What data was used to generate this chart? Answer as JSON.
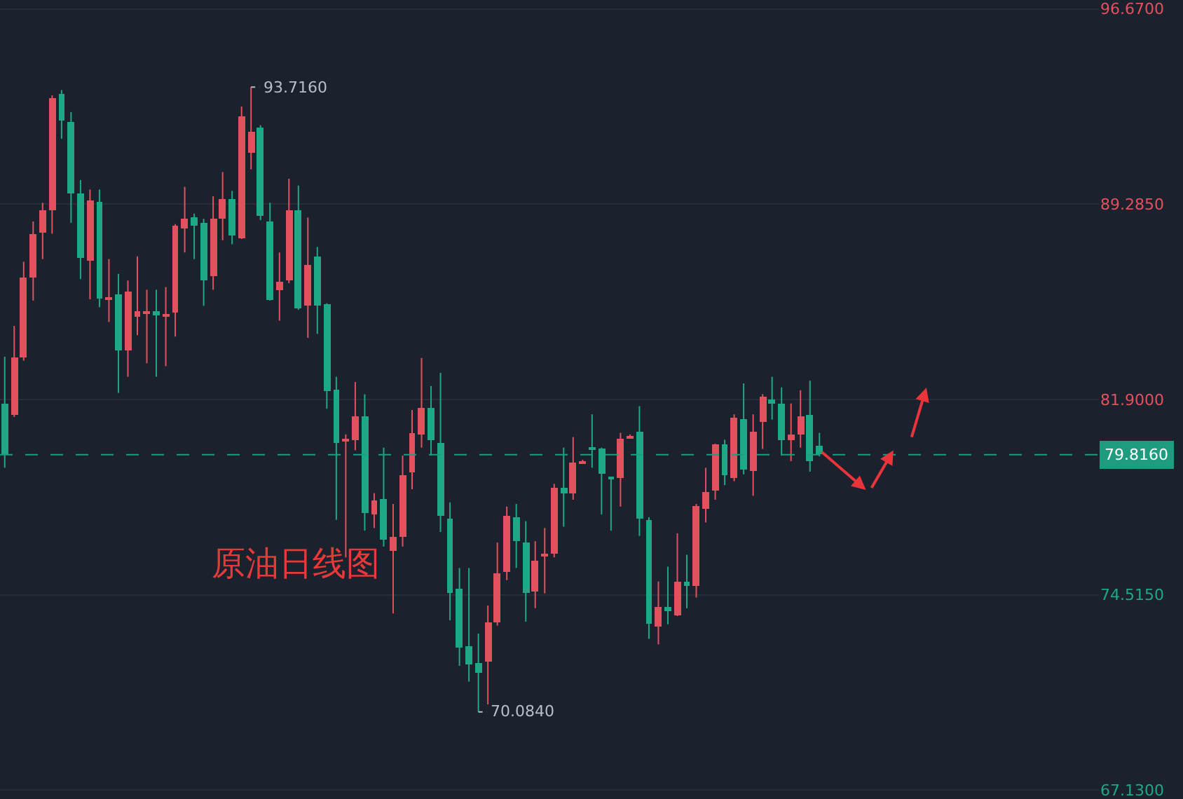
{
  "chart_data": {
    "type": "candlestick",
    "categories": [
      null,
      null,
      null,
      null,
      null,
      null,
      null,
      null,
      null,
      null,
      null,
      null,
      null,
      null,
      null,
      null,
      null,
      null,
      null,
      null,
      null,
      null,
      null,
      null,
      null,
      null,
      null,
      null,
      null,
      null,
      null,
      null,
      null,
      null,
      null,
      null,
      null,
      null,
      null,
      null,
      null,
      null,
      null,
      null,
      null,
      null,
      null,
      null,
      null,
      null,
      null,
      null,
      null,
      null,
      null,
      null,
      null,
      null,
      null,
      null,
      null,
      null,
      null,
      null,
      null,
      null,
      null,
      null,
      null,
      null,
      null,
      null,
      null,
      null,
      null,
      null,
      null,
      null,
      null,
      null,
      null,
      null,
      null,
      null,
      null,
      null,
      null,
      null,
      null,
      null,
      null,
      null,
      null,
      null,
      null,
      null,
      null,
      null,
      null,
      null,
      null,
      null,
      null,
      null,
      null,
      null,
      null,
      null,
      null,
      null,
      null,
      null,
      null,
      null,
      null,
      null
    ],
    "ohlc": [
      [
        81.75,
        83.52,
        79.32,
        79.83
      ],
      [
        81.34,
        84.68,
        81.24,
        83.47
      ],
      [
        83.47,
        87.11,
        83.37,
        86.5
      ],
      [
        86.5,
        88.63,
        85.64,
        88.17
      ],
      [
        88.22,
        89.34,
        87.21,
        89.08
      ],
      [
        89.08,
        93.4,
        88.17,
        93.28
      ],
      [
        93.45,
        93.6,
        91.76,
        92.47
      ],
      [
        92.42,
        92.77,
        88.58,
        89.69
      ],
      [
        89.69,
        90.2,
        86.45,
        87.26
      ],
      [
        87.16,
        89.84,
        85.69,
        89.44
      ],
      [
        89.39,
        89.84,
        85.39,
        85.74
      ],
      [
        85.69,
        87.21,
        84.83,
        85.79
      ],
      [
        85.9,
        86.65,
        82.15,
        83.77
      ],
      [
        83.77,
        86.4,
        82.76,
        86.0
      ],
      [
        85.04,
        87.31,
        84.33,
        85.24
      ],
      [
        85.14,
        86.05,
        83.27,
        85.24
      ],
      [
        85.24,
        86.05,
        82.76,
        85.09
      ],
      [
        85.04,
        86.15,
        83.16,
        85.14
      ],
      [
        85.19,
        88.53,
        84.28,
        88.48
      ],
      [
        88.37,
        89.94,
        87.46,
        88.73
      ],
      [
        88.78,
        88.93,
        87.21,
        88.48
      ],
      [
        88.58,
        88.73,
        85.44,
        86.4
      ],
      [
        86.55,
        89.59,
        86.05,
        88.73
      ],
      [
        88.73,
        90.5,
        87.92,
        89.49
      ],
      [
        89.49,
        89.79,
        87.77,
        88.12
      ],
      [
        88.02,
        92.98,
        87.97,
        92.62
      ],
      [
        91.21,
        93.716,
        90.6,
        92.02
      ],
      [
        92.17,
        92.27,
        88.68,
        88.83
      ],
      [
        88.63,
        89.34,
        85.64,
        85.69
      ],
      [
        86.05,
        87.46,
        84.88,
        86.35
      ],
      [
        86.4,
        90.25,
        86.3,
        89.08
      ],
      [
        89.08,
        89.99,
        85.29,
        85.34
      ],
      [
        85.44,
        88.78,
        84.23,
        87.01
      ],
      [
        87.31,
        87.67,
        84.38,
        85.44
      ],
      [
        85.49,
        85.54,
        81.55,
        82.2
      ],
      [
        82.25,
        82.76,
        77.35,
        80.28
      ],
      [
        80.33,
        80.58,
        75.93,
        80.43
      ],
      [
        80.38,
        82.56,
        79.98,
        81.24
      ],
      [
        81.24,
        82.1,
        76.94,
        77.6
      ],
      [
        77.55,
        78.36,
        77.04,
        78.11
      ],
      [
        78.16,
        80.08,
        76.34,
        76.59
      ],
      [
        76.18,
        77.95,
        73.81,
        76.69
      ],
      [
        76.69,
        79.78,
        76.34,
        79.02
      ],
      [
        79.12,
        81.5,
        78.51,
        80.64
      ],
      [
        80.58,
        83.47,
        80.08,
        81.6
      ],
      [
        81.6,
        82.41,
        79.78,
        80.38
      ],
      [
        80.28,
        82.91,
        76.89,
        77.5
      ],
      [
        77.4,
        78.01,
        73.55,
        74.57
      ],
      [
        74.72,
        75.53,
        71.83,
        72.54
      ],
      [
        72.59,
        75.53,
        71.23,
        71.89
      ],
      [
        71.94,
        73.05,
        70.084,
        71.58
      ],
      [
        71.99,
        74.11,
        70.37,
        73.45
      ],
      [
        73.45,
        76.49,
        73.35,
        75.32
      ],
      [
        75.38,
        77.85,
        75.07,
        77.5
      ],
      [
        77.45,
        77.95,
        75.53,
        76.54
      ],
      [
        76.49,
        77.3,
        73.5,
        74.57
      ],
      [
        74.62,
        76.54,
        74.01,
        75.78
      ],
      [
        75.98,
        77.04,
        74.57,
        76.08
      ],
      [
        76.08,
        78.71,
        75.93,
        78.56
      ],
      [
        78.56,
        80.08,
        77.09,
        78.36
      ],
      [
        78.36,
        80.48,
        78.11,
        79.52
      ],
      [
        79.47,
        79.62,
        79.47,
        79.57
      ],
      [
        80.08,
        81.34,
        79.32,
        79.98
      ],
      [
        80.03,
        80.08,
        77.55,
        79.07
      ],
      [
        78.97,
        78.97,
        76.94,
        78.87
      ],
      [
        78.92,
        80.64,
        77.85,
        80.43
      ],
      [
        80.43,
        80.58,
        80.43,
        80.53
      ],
      [
        80.69,
        81.65,
        76.74,
        77.4
      ],
      [
        77.35,
        77.45,
        72.85,
        73.4
      ],
      [
        73.3,
        75.02,
        72.64,
        74.06
      ],
      [
        74.06,
        75.58,
        73.4,
        73.91
      ],
      [
        73.76,
        76.84,
        73.71,
        75.02
      ],
      [
        75.02,
        76.03,
        74.01,
        74.87
      ],
      [
        74.87,
        77.95,
        74.41,
        77.85
      ],
      [
        77.75,
        79.32,
        77.25,
        78.41
      ],
      [
        78.46,
        80.23,
        78.11,
        80.18
      ],
      [
        80.23,
        80.38,
        78.66,
        79.02
      ],
      [
        78.92,
        81.34,
        78.81,
        81.19
      ],
      [
        81.14,
        82.51,
        79.07,
        79.27
      ],
      [
        79.22,
        81.34,
        78.26,
        80.69
      ],
      [
        81.04,
        82.1,
        80.03,
        82.0
      ],
      [
        81.9,
        82.76,
        81.14,
        81.75
      ],
      [
        81.75,
        82.36,
        79.78,
        80.38
      ],
      [
        80.38,
        81.75,
        79.57,
        80.58
      ],
      [
        80.58,
        82.25,
        80.08,
        81.24
      ],
      [
        81.34,
        82.61,
        79.17,
        79.57
      ],
      [
        80.13,
        80.64,
        79.75,
        79.816
      ],
      null,
      null,
      null,
      null,
      null,
      null,
      null,
      null,
      null,
      null,
      null,
      null,
      null,
      null,
      null,
      null,
      null,
      null,
      null,
      null,
      null,
      null,
      null,
      null,
      null,
      null,
      null,
      null,
      null
    ],
    "ylim": [
      66.9,
      96.9
    ],
    "yticks": [
      {
        "value": 67.13,
        "label": "67.1300"
      },
      {
        "value": 74.515,
        "label": "74.5150"
      },
      {
        "value": 81.9,
        "label": "81.9000"
      },
      {
        "value": 89.285,
        "label": "89.2850"
      },
      {
        "value": 96.67,
        "label": "96.6700"
      }
    ],
    "grid": "y",
    "tick_labels": "y",
    "ref_lines": [
      {
        "axis": "y",
        "value": 79.816,
        "label": "79.8160",
        "color": "#1f9c7f",
        "line_style": "dashed"
      }
    ],
    "annotations": [
      "93.7160",
      "70.0840",
      "原油日线图"
    ]
  }
}
